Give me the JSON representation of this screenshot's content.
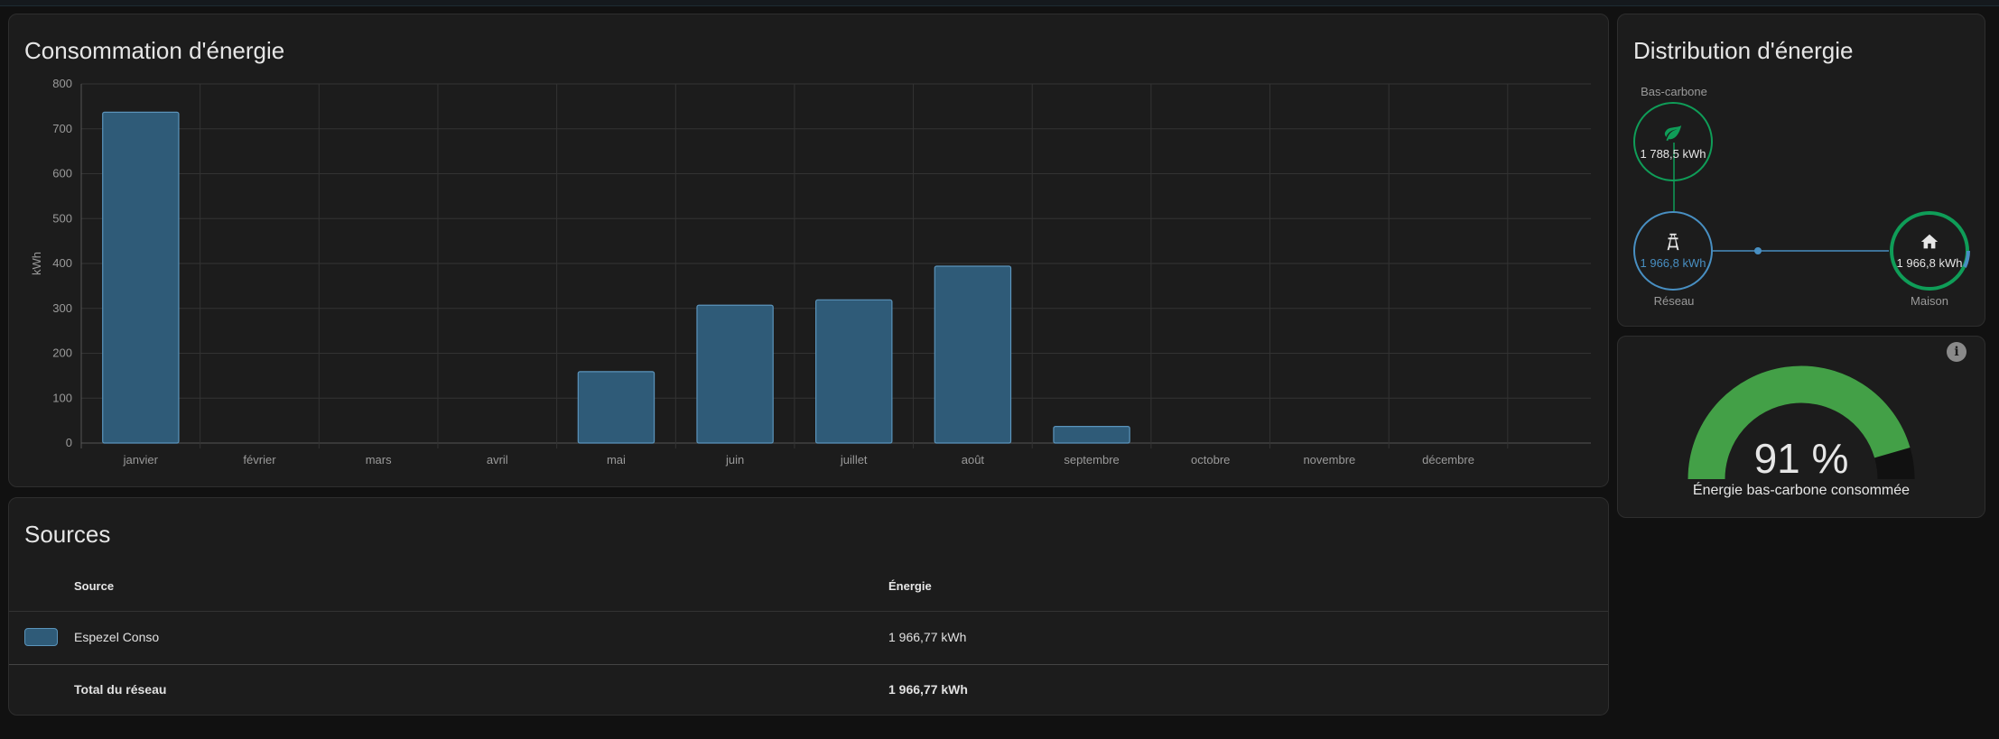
{
  "consumption": {
    "title": "Consommation d'énergie",
    "chart_data": {
      "type": "bar",
      "categories": [
        "janvier",
        "février",
        "mars",
        "avril",
        "mai",
        "juin",
        "juillet",
        "août",
        "septembre",
        "octobre",
        "novembre",
        "décembre"
      ],
      "series": [
        {
          "name": "Espezel Conso",
          "values": [
            737,
            0,
            0,
            0,
            159,
            307,
            319,
            394,
            37,
            0,
            0,
            0
          ],
          "color": "#2f5b78",
          "border": "#5b94bb"
        }
      ],
      "yticks": [
        "0",
        "100",
        "200",
        "300",
        "400",
        "500",
        "600",
        "700",
        "800"
      ],
      "ylim": [
        0,
        800
      ],
      "ylabel": "kWh",
      "xlabel": "",
      "title": "",
      "grid": true
    }
  },
  "sources": {
    "title": "Sources",
    "headers": {
      "source": "Source",
      "energy": "Énergie"
    },
    "rows": [
      {
        "source": "Espezel Conso",
        "energy": "1 966,77 kWh",
        "color": "#2f5b78"
      }
    ],
    "total": {
      "label": "Total du réseau",
      "energy": "1 966,77 kWh"
    }
  },
  "distribution": {
    "title": "Distribution d'énergie",
    "low_carbon": {
      "label": "Bas-carbone",
      "value": "1 788,5 kWh",
      "icon": "leaf-icon",
      "color": "#0f9d58"
    },
    "grid": {
      "label": "Réseau",
      "value": "1 966,8 kWh",
      "icon": "transmission-tower-icon",
      "color": "#488fc2"
    },
    "home": {
      "label": "Maison",
      "value": "1 966,8 kWh",
      "icon": "home-icon",
      "color": "#0f9d58"
    }
  },
  "gauge": {
    "value": "91 %",
    "fraction": 0.91,
    "label": "Énergie bas-carbone consommée",
    "color": "#43a047",
    "track_color": "#111111",
    "icon": "info-icon"
  }
}
